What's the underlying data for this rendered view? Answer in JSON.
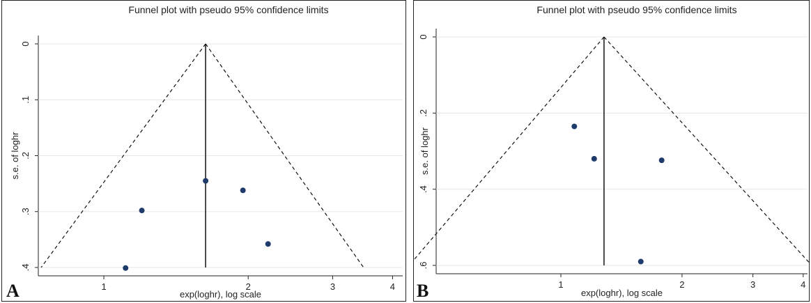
{
  "panels": [
    {
      "letter": "A",
      "colors": {
        "point": "#1f3b6b",
        "line": "#111111",
        "grid": "#e6e8e4"
      },
      "chart_data": {
        "type": "scatter",
        "title": "Funnel plot with pseudo 95% confidence limits",
        "xlabel": "exp(loghr), log scale",
        "ylabel": "s.e. of loghr",
        "x_scale": "log",
        "y_reversed": true,
        "xlim": [
          0.73,
          4.2
        ],
        "ylim": [
          0,
          0.4
        ],
        "x_ticks": [
          1,
          2,
          3,
          4
        ],
        "x_tick_labels": [
          "1",
          "2",
          "3",
          "4"
        ],
        "y_ticks": [
          0,
          0.1,
          0.2,
          0.3,
          0.4
        ],
        "y_tick_labels": [
          "0",
          ".1",
          ".2",
          ".3",
          ".4"
        ],
        "grid": true,
        "pooled_estimate": 1.63,
        "funnel_lower_at_max_se": 0.74,
        "funnel_upper_at_max_se": 3.48,
        "points": [
          {
            "x": 1.11,
            "y": 0.401
          },
          {
            "x": 1.2,
            "y": 0.298
          },
          {
            "x": 1.63,
            "y": 0.245
          },
          {
            "x": 1.95,
            "y": 0.262
          },
          {
            "x": 2.2,
            "y": 0.358
          }
        ]
      }
    },
    {
      "letter": "B",
      "colors": {
        "point": "#1f3b6b",
        "line": "#111111",
        "grid": "#e6e8e4"
      },
      "chart_data": {
        "type": "scatter",
        "title": "Funnel plot with pseudo 95% confidence limits",
        "xlabel": "exp(loghr), log scale",
        "ylabel": "s.e. of loghr",
        "x_scale": "log",
        "y_reversed": true,
        "xlim": [
          0.49,
          4.1
        ],
        "ylim": [
          0,
          0.6
        ],
        "x_ticks": [
          1,
          2,
          3,
          4
        ],
        "x_tick_labels": [
          "1",
          "2",
          "3",
          "4"
        ],
        "y_ticks": [
          0,
          0.2,
          0.4,
          0.6
        ],
        "y_tick_labels": [
          "0",
          ".2",
          ".4",
          ".6"
        ],
        "grid": true,
        "pooled_estimate": 1.28,
        "funnel_lower_at_max_se": 0.42,
        "funnel_upper_at_max_se": 4.2,
        "points": [
          {
            "x": 1.08,
            "y": 0.235
          },
          {
            "x": 1.21,
            "y": 0.32
          },
          {
            "x": 1.78,
            "y": 0.324
          },
          {
            "x": 1.58,
            "y": 0.59
          }
        ]
      }
    }
  ]
}
